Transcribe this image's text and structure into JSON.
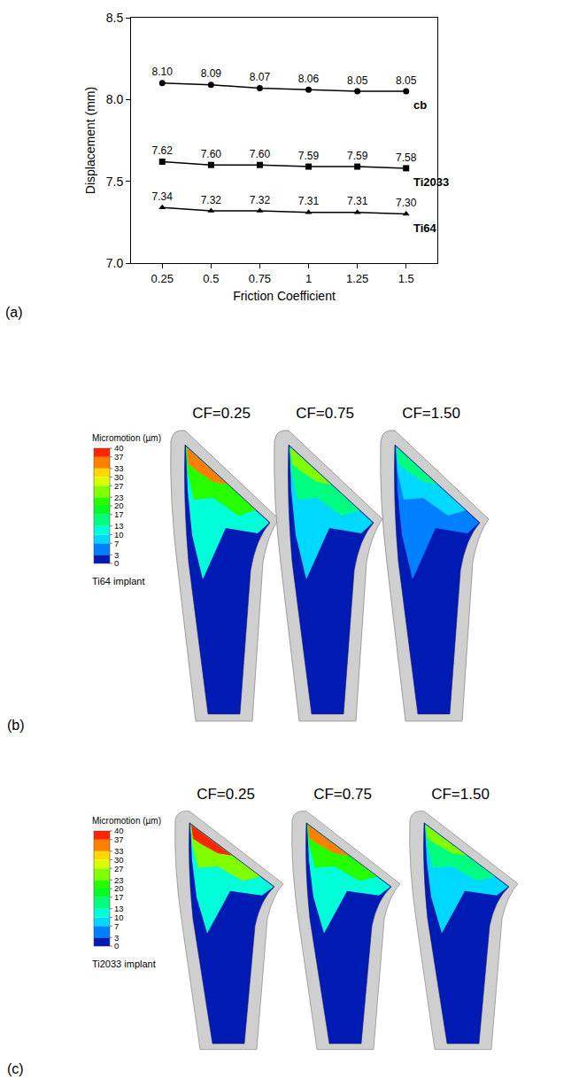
{
  "chart_data": {
    "type": "line",
    "letter": "(a)",
    "x_label": "Friction Coefficient",
    "y_label": "Displacement (mm)",
    "x": [
      0.25,
      0.5,
      0.75,
      1,
      1.25,
      1.5
    ],
    "xlim": [
      0.09,
      1.66
    ],
    "xticks": [
      0.25,
      0.5,
      0.75,
      1,
      1.25,
      1.5
    ],
    "ylim": [
      7.0,
      8.5
    ],
    "yticks": [
      {
        "value": 7.0,
        "label": "7.0"
      },
      {
        "value": 7.5,
        "label": "7.5"
      },
      {
        "value": 8.0,
        "label": "8.0"
      },
      {
        "value": 8.5,
        "label": "8.5"
      }
    ],
    "grid": false,
    "data_labels": true,
    "series": [
      {
        "name": "cb",
        "color": "#000000",
        "marker": "circle",
        "line_style": "solid",
        "values": [
          8.1,
          8.09,
          8.07,
          8.06,
          8.05,
          8.05
        ],
        "value_labels": [
          "8.10",
          "8.09",
          "8.07",
          "8.06",
          "8.05",
          "8.05"
        ]
      },
      {
        "name": "Ti2033",
        "color": "#000000",
        "marker": "square",
        "line_style": "solid",
        "values": [
          7.62,
          7.6,
          7.6,
          7.59,
          7.59,
          7.58
        ],
        "value_labels": [
          "7.62",
          "7.60",
          "7.60",
          "7.59",
          "7.59",
          "7.58"
        ]
      },
      {
        "name": "Ti64",
        "color": "#000000",
        "marker": "triangle",
        "line_style": "solid",
        "values": [
          7.34,
          7.32,
          7.32,
          7.31,
          7.31,
          7.3
        ],
        "value_labels": [
          "7.34",
          "7.32",
          "7.32",
          "7.31",
          "7.31",
          "7.30"
        ]
      }
    ]
  },
  "contour_panels": [
    {
      "letter": "(b)",
      "label": "Ti64 implant",
      "colorbar": {
        "title": "Micromotion (µm)",
        "range": [
          0,
          40
        ],
        "ticks": [
          40,
          37,
          33,
          30,
          27,
          23,
          20,
          17,
          13,
          10,
          7,
          3,
          0
        ]
      },
      "implants": [
        {
          "title": "CF=0.25",
          "peak_micromotion": 37
        },
        {
          "title": "CF=0.75",
          "peak_micromotion": 25
        },
        {
          "title": "CF=1.50",
          "peak_micromotion": 15
        }
      ]
    },
    {
      "letter": "(c)",
      "label": "Ti2033 implant",
      "colorbar": {
        "title": "Micromotion (µm)",
        "range": [
          0,
          40
        ],
        "ticks": [
          40,
          37,
          33,
          30,
          27,
          23,
          20,
          17,
          13,
          10,
          7,
          3,
          0
        ]
      },
      "implants": [
        {
          "title": "CF=0.25",
          "peak_micromotion": 40
        },
        {
          "title": "CF=0.75",
          "peak_micromotion": 37
        },
        {
          "title": "CF=1.50",
          "peak_micromotion": 24
        }
      ]
    }
  ]
}
